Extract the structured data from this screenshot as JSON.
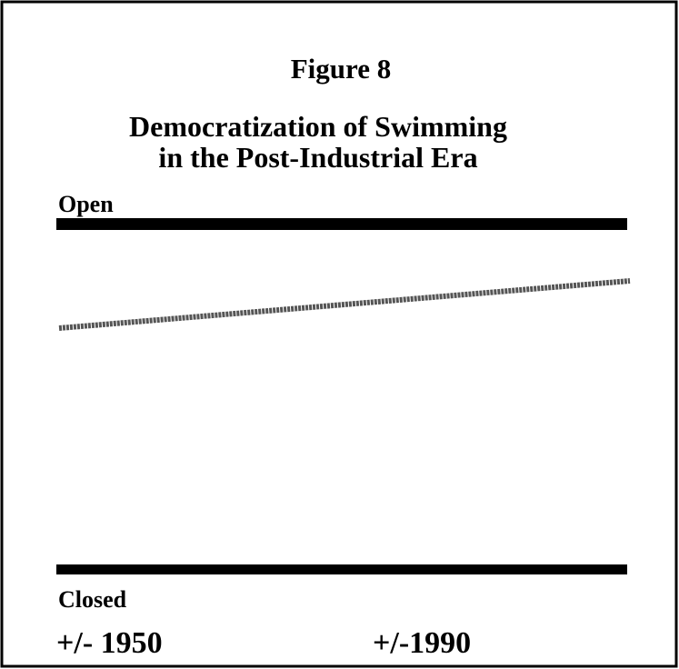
{
  "figure": {
    "label": "Figure 8",
    "title_lines": [
      "Democratization of Swimming",
      "in the Post-Industrial Era"
    ],
    "top_label": "Open",
    "bottom_label": "Closed",
    "x_labels": [
      "+/- 1950",
      "+/-1990"
    ]
  }
}
